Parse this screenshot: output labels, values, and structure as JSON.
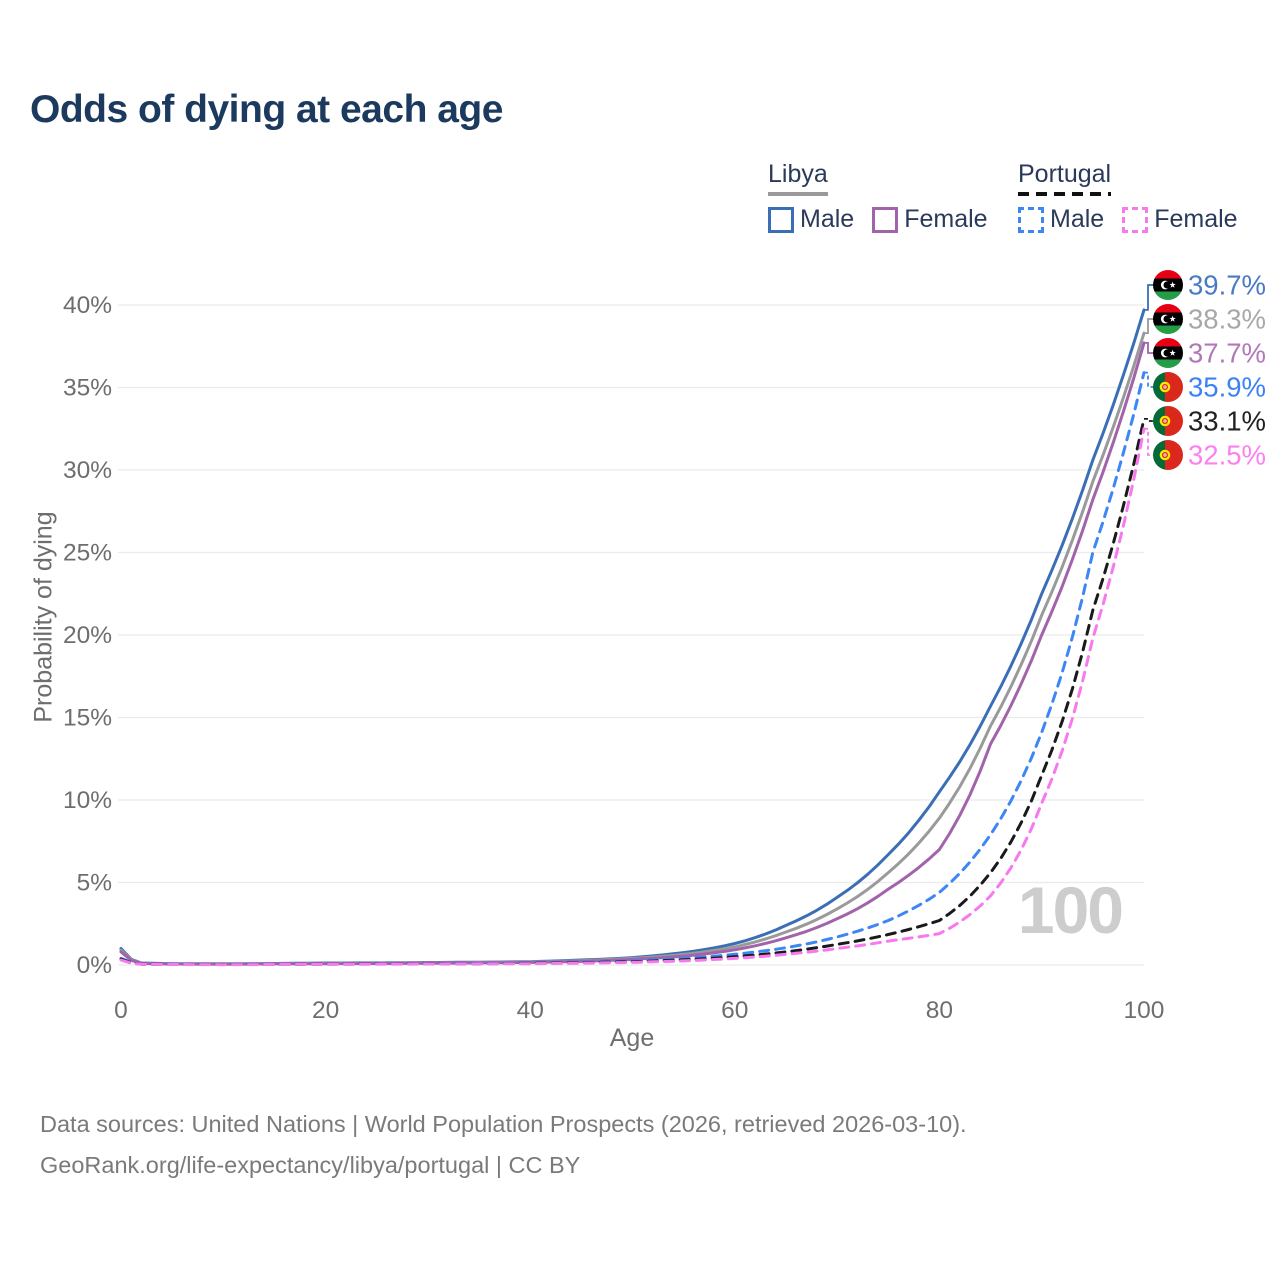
{
  "title": "Odds of dying at each age",
  "legend": {
    "groups": [
      {
        "title": "Libya",
        "line_style": "solid",
        "line_color": "#9a9a9a",
        "items": [
          {
            "label": "Male",
            "color": "#3a6eb5",
            "dashed": false
          },
          {
            "label": "Female",
            "color": "#a263aa",
            "dashed": false
          }
        ]
      },
      {
        "title": "Portugal",
        "line_style": "dashed",
        "line_color": "#111111",
        "items": [
          {
            "label": "Male",
            "color": "#3d86f5",
            "dashed": true
          },
          {
            "label": "Female",
            "color": "#f879ee",
            "dashed": true
          }
        ]
      }
    ]
  },
  "chart_data": {
    "type": "line",
    "title": "Odds of dying at each age",
    "xlabel": "Age",
    "ylabel": "Probability of dying",
    "watermark": "100",
    "grid": "horizontal",
    "legend_position": "top-right",
    "xlim": [
      0,
      100
    ],
    "ylim_pct": [
      0,
      41.5
    ],
    "xticks": [
      0,
      20,
      40,
      60,
      80,
      100
    ],
    "yticks_pct": [
      0,
      5,
      10,
      15,
      20,
      25,
      30,
      35,
      40
    ],
    "x": [
      0,
      2,
      5,
      10,
      15,
      20,
      25,
      30,
      35,
      40,
      45,
      50,
      55,
      60,
      65,
      70,
      75,
      80,
      85,
      90,
      95,
      100
    ],
    "series": [
      {
        "name": "Libya Male",
        "country": "Libya",
        "sex": "male",
        "color": "#3a6eb5",
        "dash": null,
        "flag": "libya",
        "end_label": "39.7%",
        "end_value_pct": 39.7,
        "label_color": "#4a7ac2",
        "values_pct": [
          1.0,
          0.12,
          0.08,
          0.07,
          0.09,
          0.12,
          0.13,
          0.15,
          0.17,
          0.2,
          0.3,
          0.45,
          0.75,
          1.3,
          2.4,
          4.1,
          6.7,
          10.5,
          15.7,
          22.5,
          30.6,
          39.7
        ]
      },
      {
        "name": "Libya",
        "country": "Libya",
        "sex": "combined",
        "color": "#9a9a9a",
        "dash": null,
        "flag": "libya",
        "end_label": "38.3%",
        "end_value_pct": 38.3,
        "label_color": "#a8a8a8",
        "values_pct": [
          0.9,
          0.11,
          0.07,
          0.06,
          0.08,
          0.1,
          0.11,
          0.13,
          0.15,
          0.18,
          0.26,
          0.4,
          0.64,
          1.1,
          2.0,
          3.4,
          5.6,
          8.9,
          14.5,
          21.2,
          29.3,
          38.3
        ]
      },
      {
        "name": "Libya Female",
        "country": "Libya",
        "sex": "female",
        "color": "#a263aa",
        "dash": null,
        "flag": "libya",
        "end_label": "37.7%",
        "end_value_pct": 37.7,
        "label_color": "#b178b8",
        "values_pct": [
          0.8,
          0.1,
          0.06,
          0.05,
          0.07,
          0.08,
          0.09,
          0.11,
          0.13,
          0.16,
          0.22,
          0.34,
          0.54,
          0.92,
          1.65,
          2.8,
          4.6,
          7.0,
          13.4,
          20.0,
          28.2,
          37.7
        ]
      },
      {
        "name": "Portugal Male",
        "country": "Portugal",
        "sex": "male",
        "color": "#3d86f5",
        "dash": "9 7",
        "flag": "portugal",
        "end_label": "35.9%",
        "end_value_pct": 35.9,
        "label_color": "#3b82f7",
        "values_pct": [
          0.4,
          0.06,
          0.04,
          0.03,
          0.04,
          0.06,
          0.07,
          0.08,
          0.1,
          0.12,
          0.17,
          0.25,
          0.4,
          0.65,
          1.05,
          1.7,
          2.7,
          4.4,
          7.9,
          14.1,
          25.0,
          35.9
        ]
      },
      {
        "name": "Portugal",
        "country": "Portugal",
        "sex": "combined",
        "color": "#1a1a1a",
        "dash": "9 7",
        "flag": "portugal",
        "end_label": "33.1%",
        "end_value_pct": 33.1,
        "label_color": "#222222",
        "values_pct": [
          0.35,
          0.05,
          0.03,
          0.03,
          0.03,
          0.05,
          0.06,
          0.07,
          0.08,
          0.1,
          0.14,
          0.2,
          0.31,
          0.5,
          0.8,
          1.25,
          1.85,
          2.7,
          5.6,
          11.5,
          21.5,
          33.1
        ]
      },
      {
        "name": "Portugal Female",
        "country": "Portugal",
        "sex": "female",
        "color": "#f879ee",
        "dash": "9 7",
        "flag": "portugal",
        "end_label": "32.5%",
        "end_value_pct": 32.5,
        "label_color": "#fb80f0",
        "values_pct": [
          0.3,
          0.04,
          0.03,
          0.02,
          0.03,
          0.04,
          0.05,
          0.06,
          0.07,
          0.08,
          0.11,
          0.16,
          0.25,
          0.4,
          0.65,
          1.0,
          1.45,
          1.9,
          4.2,
          9.8,
          19.8,
          32.5
        ]
      }
    ]
  },
  "footer": {
    "line1": "Data sources: United Nations | World Population Prospects (2026, retrieved 2026-03-10).",
    "line2": "GeoRank.org/life-expectancy/libya/portugal | CC BY"
  }
}
